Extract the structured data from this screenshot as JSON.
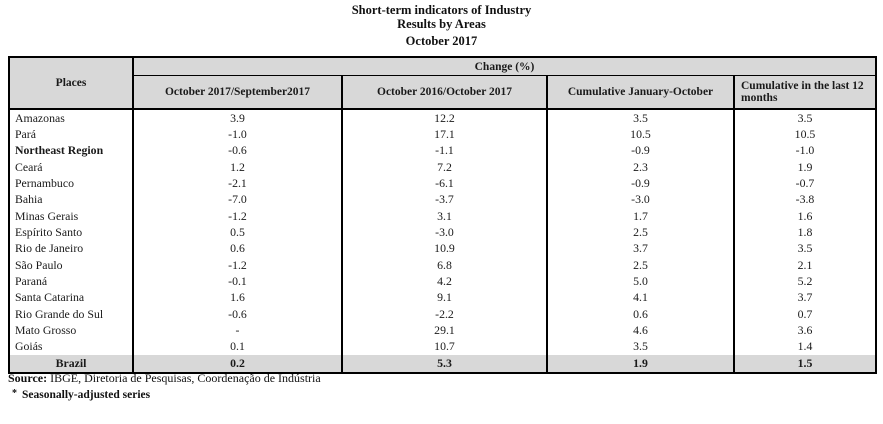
{
  "title": {
    "line1": "Short-term indicators of Industry",
    "line2": "Results by Areas",
    "line3": "October 2017"
  },
  "table": {
    "places_header": "Places",
    "group_header": "Change (%)",
    "columns": [
      "October 2017/September2017",
      "October 2016/October 2017",
      "Cumulative January-October",
      "Cumulative in the last 12 months"
    ],
    "rows": [
      {
        "place": "Amazonas",
        "values": [
          "3.9",
          "12.2",
          "3.5",
          "3.5"
        ],
        "bold": false
      },
      {
        "place": "Pará",
        "values": [
          "-1.0",
          "17.1",
          "10.5",
          "10.5"
        ],
        "bold": false
      },
      {
        "place": "Northeast Region",
        "values": [
          "-0.6",
          "-1.1",
          "-0.9",
          "-1.0"
        ],
        "bold": true
      },
      {
        "place": "Ceará",
        "values": [
          "1.2",
          "7.2",
          "2.3",
          "1.9"
        ],
        "bold": false
      },
      {
        "place": "Pernambuco",
        "values": [
          "-2.1",
          "-6.1",
          "-0.9",
          "-0.7"
        ],
        "bold": false
      },
      {
        "place": "Bahia",
        "values": [
          "-7.0",
          "-3.7",
          "-3.0",
          "-3.8"
        ],
        "bold": false
      },
      {
        "place": "Minas Gerais",
        "values": [
          "-1.2",
          "3.1",
          "1.7",
          "1.6"
        ],
        "bold": false
      },
      {
        "place": "Espírito Santo",
        "values": [
          "0.5",
          "-3.0",
          "2.5",
          "1.8"
        ],
        "bold": false
      },
      {
        "place": "Rio de Janeiro",
        "values": [
          "0.6",
          "10.9",
          "3.7",
          "3.5"
        ],
        "bold": false
      },
      {
        "place": "São Paulo",
        "values": [
          "-1.2",
          "6.8",
          "2.5",
          "2.1"
        ],
        "bold": false
      },
      {
        "place": "Paraná",
        "values": [
          "-0.1",
          "4.2",
          "5.0",
          "5.2"
        ],
        "bold": false
      },
      {
        "place": "Santa Catarina",
        "values": [
          "1.6",
          "9.1",
          "4.1",
          "3.7"
        ],
        "bold": false
      },
      {
        "place": "Rio Grande do Sul",
        "values": [
          "-0.6",
          "-2.2",
          "0.6",
          "0.7"
        ],
        "bold": false
      },
      {
        "place": "Mato Grosso",
        "values": [
          "-",
          "29.1",
          "4.6",
          "3.6"
        ],
        "bold": false
      },
      {
        "place": "Goiás",
        "values": [
          "0.1",
          "10.7",
          "3.5",
          "1.4"
        ],
        "bold": false
      }
    ],
    "total_row": {
      "place": "Brazil",
      "values": [
        "0.2",
        "5.3",
        "1.9",
        "1.5"
      ]
    }
  },
  "footer": {
    "source_label": "Source:",
    "source_text": "IBGE, Diretoria de Pesquisas, Coordenação de Indústria",
    "note_marker": "*",
    "note_text": "Seasonally-adjusted series"
  },
  "colors": {
    "header_bg": "#d8d8d8",
    "total_row_bg": "#d8d8d8",
    "border": "#000000",
    "text": "#111111"
  }
}
